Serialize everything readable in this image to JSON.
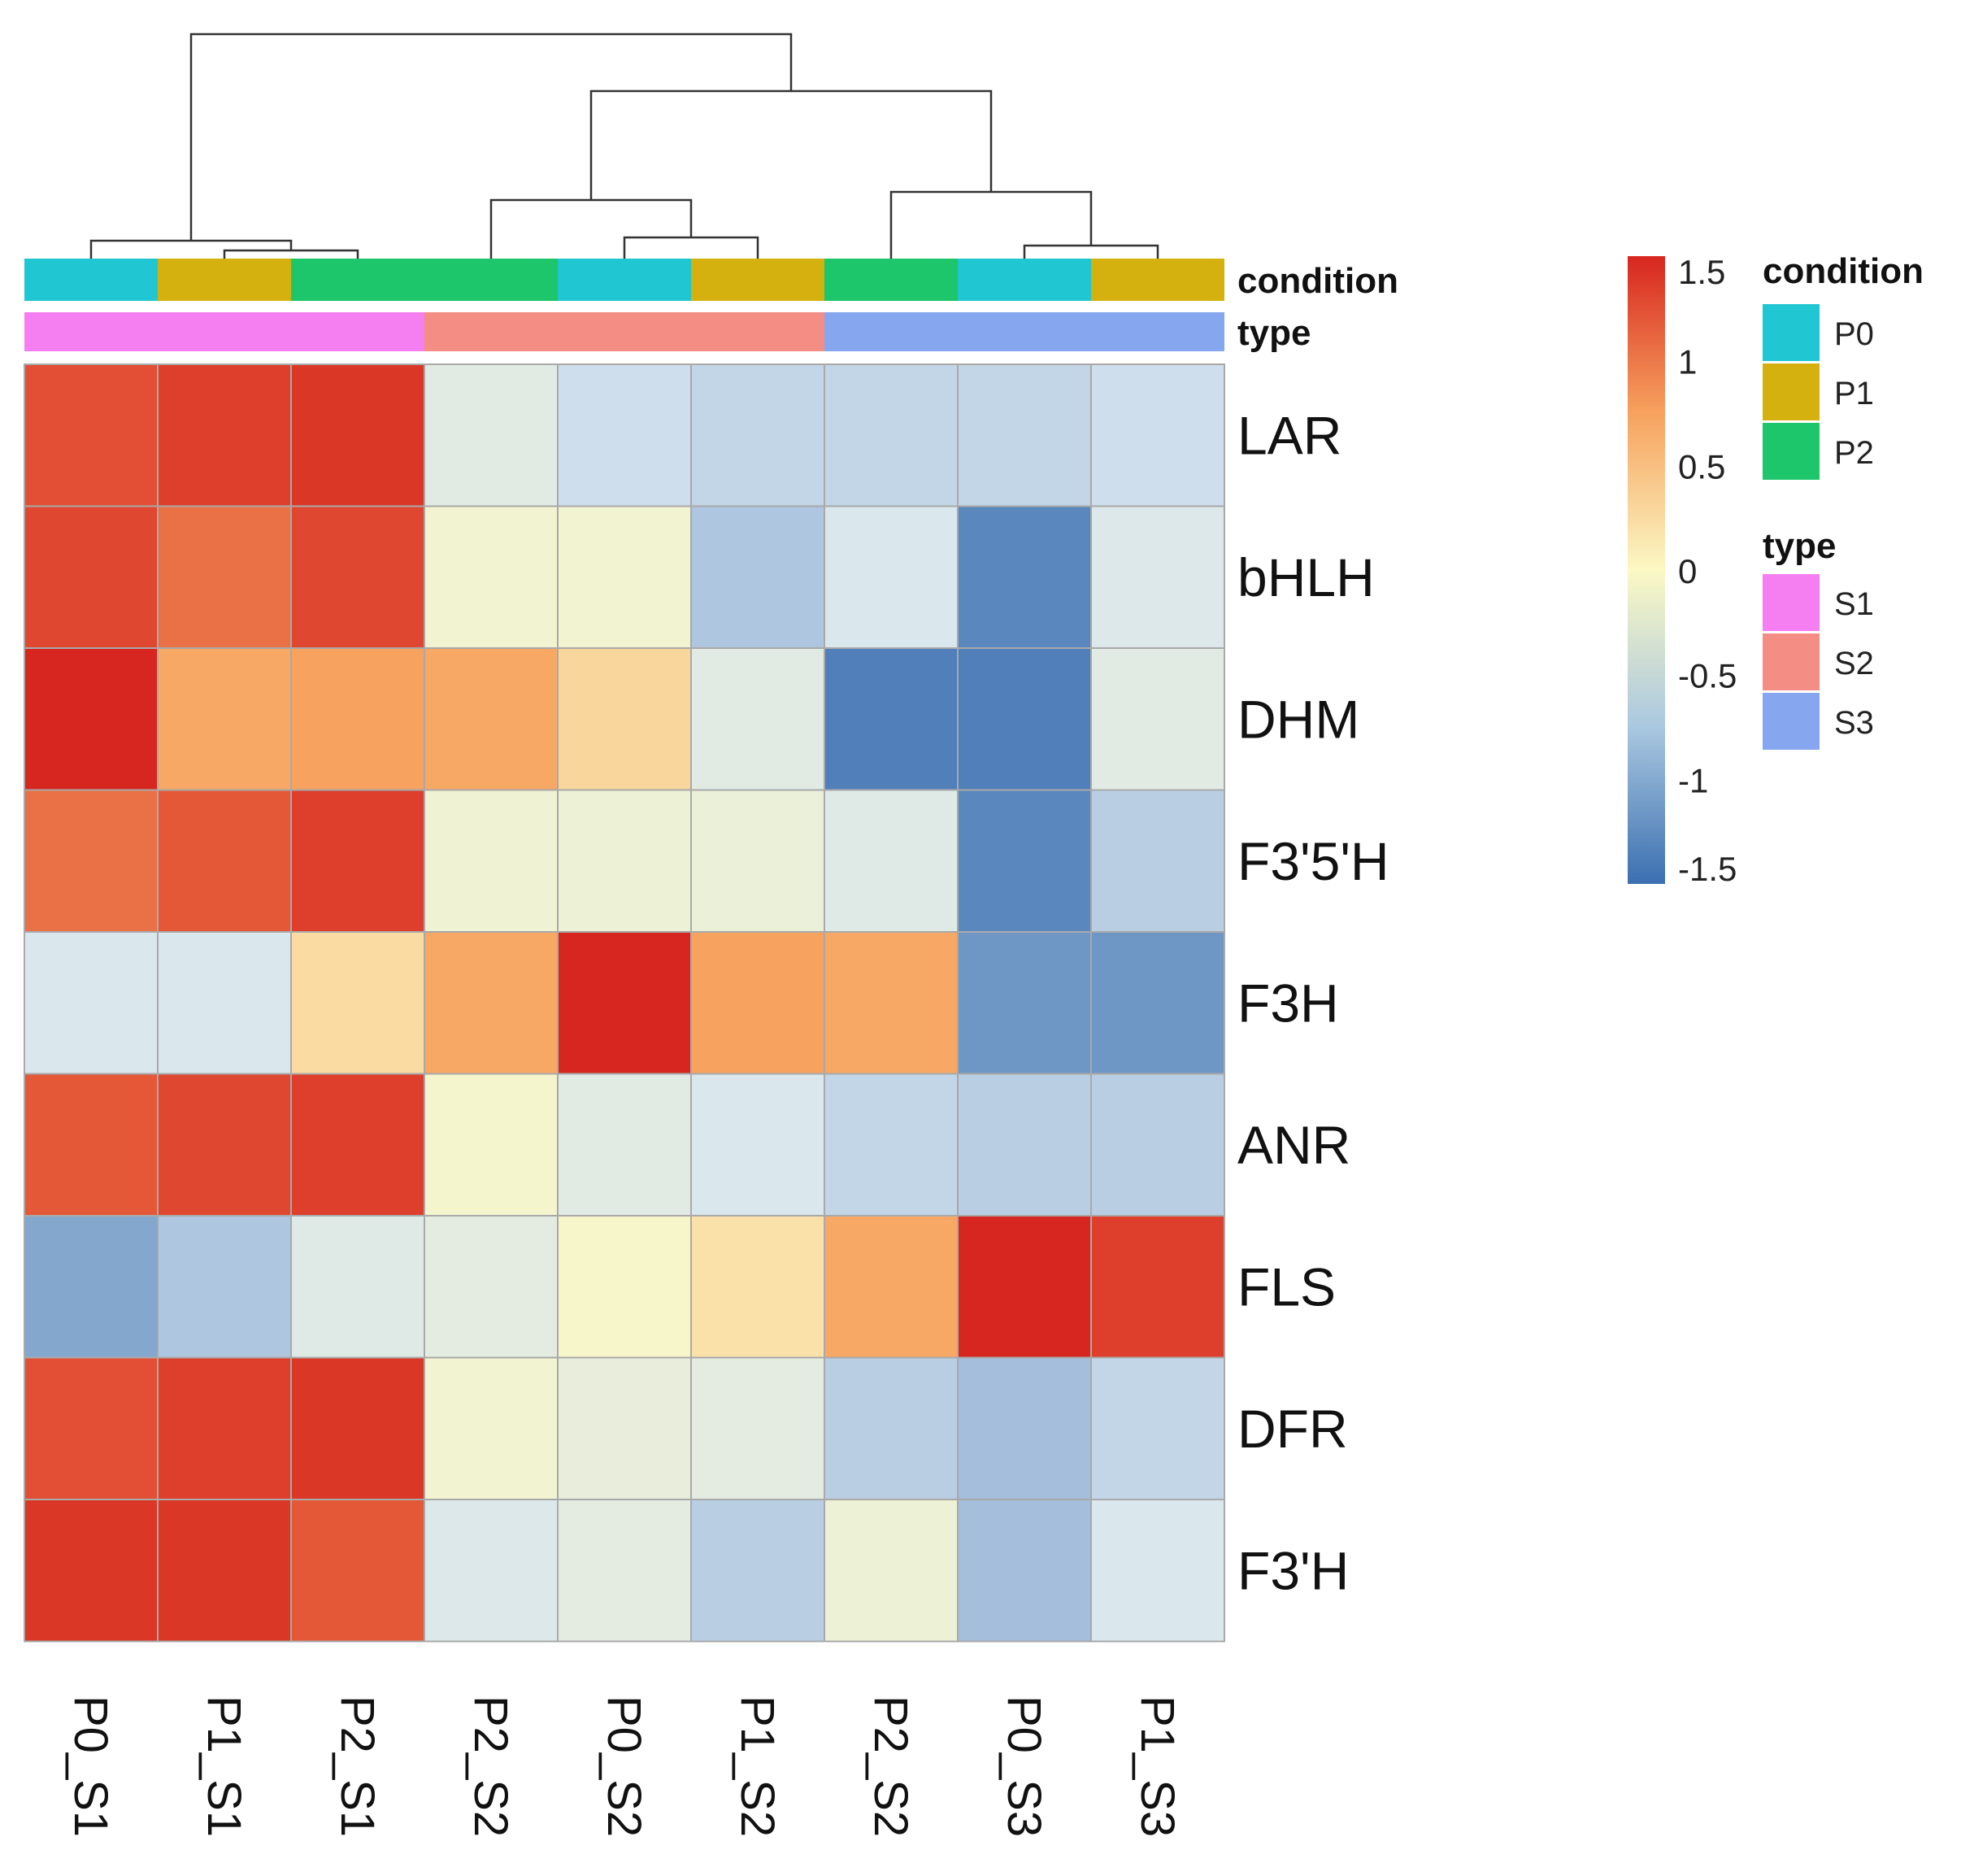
{
  "chart_data": {
    "type": "heatmap",
    "columns": [
      "P0_S1",
      "P1_S1",
      "P2_S1",
      "P2_S2",
      "P0_S2",
      "P1_S2",
      "P2_S2",
      "P0_S3",
      "P1_S3"
    ],
    "rows": [
      "LAR",
      "bHLH",
      "DHM",
      "F3'5'H",
      "F3H",
      "ANR",
      "FLS",
      "DFR",
      "F3'H"
    ],
    "values": [
      [
        1.25,
        1.35,
        1.4,
        -0.55,
        -0.8,
        -0.85,
        -0.85,
        -0.85,
        -0.8
      ],
      [
        1.3,
        1.05,
        1.3,
        -0.2,
        -0.2,
        -0.95,
        -0.7,
        -1.35,
        -0.65
      ],
      [
        1.55,
        0.7,
        0.75,
        0.7,
        0.3,
        -0.55,
        -1.4,
        -1.4,
        -0.55
      ],
      [
        1.05,
        1.2,
        1.35,
        -0.25,
        -0.3,
        -0.35,
        -0.6,
        -1.35,
        -0.9
      ],
      [
        -0.7,
        -0.7,
        0.25,
        0.7,
        1.6,
        0.75,
        0.7,
        -1.25,
        -1.25
      ],
      [
        1.2,
        1.3,
        1.35,
        -0.15,
        -0.55,
        -0.7,
        -0.85,
        -0.9,
        -0.9
      ],
      [
        -1.15,
        -0.95,
        -0.6,
        -0.5,
        -0.1,
        0.2,
        0.7,
        1.55,
        1.35
      ],
      [
        1.25,
        1.35,
        1.4,
        -0.2,
        -0.4,
        -0.5,
        -0.9,
        -1.0,
        -0.85
      ],
      [
        1.4,
        1.4,
        1.2,
        -0.65,
        -0.5,
        -0.9,
        -0.3,
        -1.0,
        -0.7
      ]
    ],
    "annotations": {
      "condition": [
        "P0",
        "P1",
        "P2",
        "P2",
        "P0",
        "P1",
        "P2",
        "P0",
        "P1"
      ],
      "type": [
        "S1",
        "S1",
        "S1",
        "S2",
        "S2",
        "S2",
        "S3",
        "S3",
        "S3"
      ]
    },
    "annotation_labels": {
      "condition": "condition",
      "type": "type"
    },
    "color_scale": {
      "min": -1.5,
      "max": 1.5,
      "ticks": [
        "1.5",
        "1",
        "0.5",
        "0",
        "-0.5",
        "-1",
        "-1.5"
      ],
      "tick_values": [
        1.5,
        1,
        0.5,
        0,
        -0.5,
        -1,
        -1.5
      ],
      "colors": [
        "#3b6fb0",
        "#d8e6f0",
        "#fbf8c4",
        "#f7a25e",
        "#d7261f"
      ]
    },
    "legends": {
      "condition": {
        "title": "condition",
        "items": [
          {
            "label": "P0",
            "color": "#21c6d3"
          },
          {
            "label": "P1",
            "color": "#d4b10f"
          },
          {
            "label": "P2",
            "color": "#1dc66a"
          }
        ]
      },
      "type": {
        "title": "type",
        "items": [
          {
            "label": "S1",
            "color": "#f57ef0"
          },
          {
            "label": "S2",
            "color": "#f48e84"
          },
          {
            "label": "S3",
            "color": "#86a6f0"
          }
        ]
      }
    },
    "dendrogram": "hierarchical clustering of columns"
  }
}
